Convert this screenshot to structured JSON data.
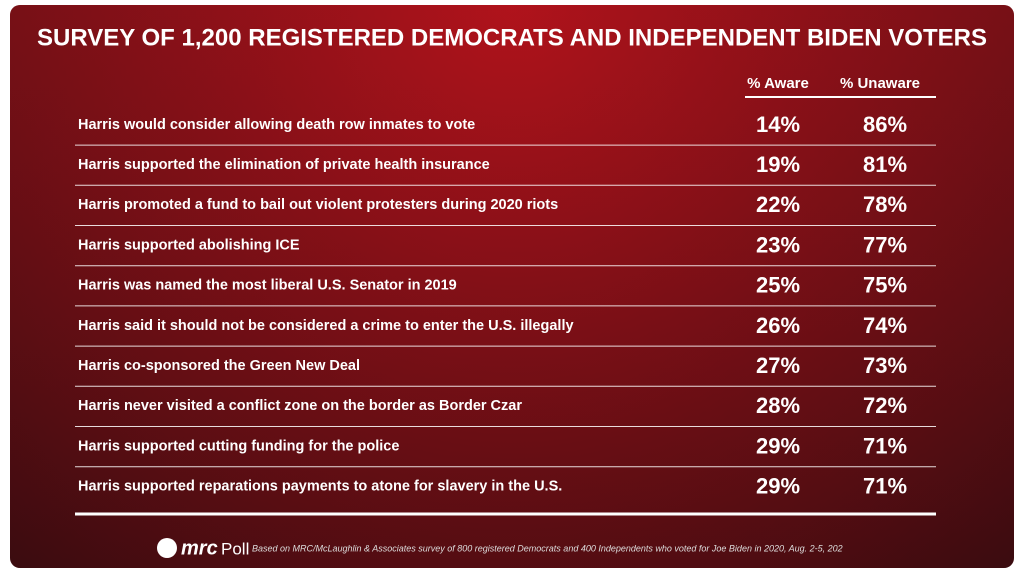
{
  "header": {
    "title": "SURVEY OF 1,200 REGISTERED DEMOCRATS AND INDEPENDENT BIDEN VOTERS"
  },
  "table": {
    "columns": [
      "% Aware",
      "% Unaware"
    ],
    "rows": [
      [
        "Harris would consider allowing death row inmates to vote",
        "14%",
        "86%"
      ],
      [
        "Harris supported the elimination of private health insurance",
        "19%",
        "81%"
      ],
      [
        "Harris promoted a fund to bail out violent protesters during 2020 riots",
        "22%",
        "78%"
      ],
      [
        "Harris supported abolishing ICE",
        "23%",
        "77%"
      ],
      [
        "Harris was named the most liberal U.S. Senator in 2019",
        "25%",
        "75%"
      ],
      [
        "Harris said it should not be considered a crime to enter the U.S. illegally",
        "26%",
        "74%"
      ],
      [
        "Harris co-sponsored the Green New Deal",
        "27%",
        "73%"
      ],
      [
        "Harris never visited a conflict zone on the border as Border Czar",
        "28%",
        "72%"
      ],
      [
        "Harris supported cutting funding for the police",
        "29%",
        "71%"
      ],
      [
        "Harris supported reparations payments to atone for slavery in the U.S.",
        "29%",
        "71%"
      ]
    ]
  },
  "footer": {
    "brand": "mrc",
    "brand_suffix": "Poll",
    "note": "Based on MRC/McLaughlin & Associates survey of 800 registered Democrats and 400 Independents who voted for Joe Biden in 2020, Aug. 2-5, 202"
  }
}
